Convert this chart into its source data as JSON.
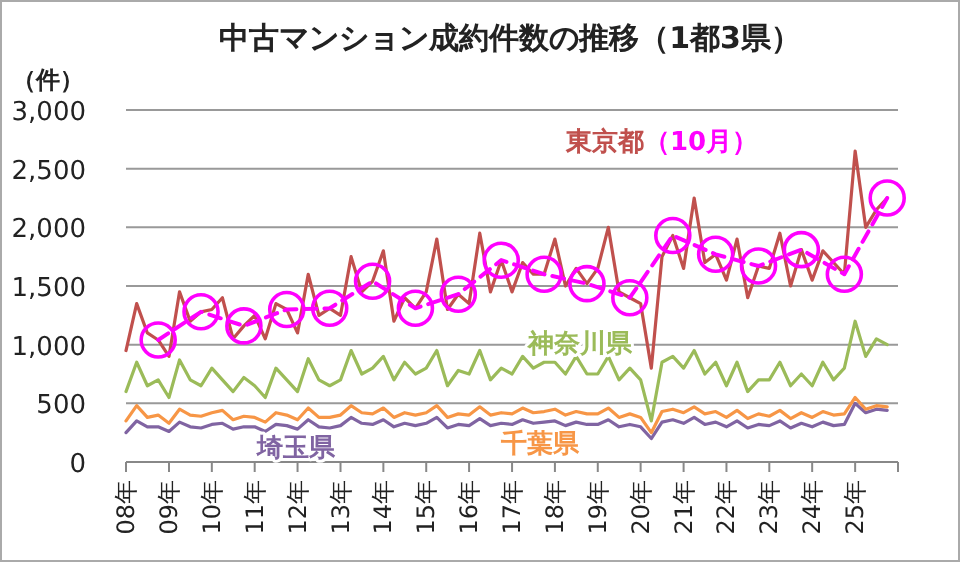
{
  "chart_data": {
    "type": "line",
    "title": "中古マンション成約件数の推移（1都3県）",
    "ylabel": "（件）",
    "x": [
      "2008-01",
      "2008-04",
      "2008-07",
      "2008-10",
      "2009-01",
      "2009-04",
      "2009-07",
      "2009-10",
      "2010-01",
      "2010-04",
      "2010-07",
      "2010-10",
      "2011-01",
      "2011-04",
      "2011-07",
      "2011-10",
      "2012-01",
      "2012-04",
      "2012-07",
      "2012-10",
      "2013-01",
      "2013-04",
      "2013-07",
      "2013-10",
      "2014-01",
      "2014-04",
      "2014-07",
      "2014-10",
      "2015-01",
      "2015-04",
      "2015-07",
      "2015-10",
      "2016-01",
      "2016-04",
      "2016-07",
      "2016-10",
      "2017-01",
      "2017-04",
      "2017-07",
      "2017-10",
      "2018-01",
      "2018-04",
      "2018-07",
      "2018-10",
      "2019-01",
      "2019-04",
      "2019-07",
      "2019-10",
      "2020-01",
      "2020-04",
      "2020-07",
      "2020-10",
      "2021-01",
      "2021-04",
      "2021-07",
      "2021-10",
      "2022-01",
      "2022-04",
      "2022-07",
      "2022-10",
      "2023-01",
      "2023-04",
      "2023-07",
      "2023-10",
      "2024-01",
      "2024-04",
      "2024-07",
      "2024-10",
      "2025-01",
      "2025-04",
      "2025-07",
      "2025-10"
    ],
    "xlim": [
      "2008-01",
      "2026-01"
    ],
    "xticks": [
      {
        "value": "2008-01",
        "label": "08年"
      },
      {
        "value": "2009-01",
        "label": "09年"
      },
      {
        "value": "2010-01",
        "label": "10年"
      },
      {
        "value": "2011-01",
        "label": "11年"
      },
      {
        "value": "2012-01",
        "label": "12年"
      },
      {
        "value": "2013-01",
        "label": "13年"
      },
      {
        "value": "2014-01",
        "label": "14年"
      },
      {
        "value": "2015-01",
        "label": "15年"
      },
      {
        "value": "2016-01",
        "label": "16年"
      },
      {
        "value": "2017-01",
        "label": "17年"
      },
      {
        "value": "2018-01",
        "label": "18年"
      },
      {
        "value": "2019-01",
        "label": "19年"
      },
      {
        "value": "2020-01",
        "label": "20年"
      },
      {
        "value": "2021-01",
        "label": "21年"
      },
      {
        "value": "2022-01",
        "label": "22年"
      },
      {
        "value": "2023-01",
        "label": "23年"
      },
      {
        "value": "2024-01",
        "label": "24年"
      },
      {
        "value": "2025-01",
        "label": "25年"
      },
      {
        "value": "2026-01",
        "label": null
      }
    ],
    "ylim": [
      0,
      3000
    ],
    "yticks": [
      0,
      500,
      {
        "value": 1000,
        "label": "1,000"
      },
      {
        "value": 1500,
        "label": "1,500"
      },
      {
        "value": 2000,
        "label": "2,000"
      },
      {
        "value": 2500,
        "label": "2,500"
      },
      {
        "value": 3000,
        "label": "3,000"
      }
    ],
    "grid": "y",
    "marker": "none",
    "line_style": "solid",
    "series": [
      {
        "name": "東京都",
        "color": "#c0504d",
        "values": [
          950,
          1350,
          1100,
          1040,
          900,
          1450,
          1200,
          1280,
          1300,
          1400,
          1050,
          1160,
          1250,
          1050,
          1350,
          1300,
          1100,
          1600,
          1250,
          1310,
          1250,
          1750,
          1450,
          1540,
          1800,
          1200,
          1400,
          1310,
          1450,
          1900,
          1300,
          1430,
          1350,
          1950,
          1450,
          1720,
          1450,
          1700,
          1600,
          1600,
          1900,
          1500,
          1650,
          1520,
          1650,
          2000,
          1450,
          1400,
          1350,
          800,
          1750,
          1930,
          1650,
          2250,
          1700,
          1770,
          1550,
          1900,
          1400,
          1670,
          1650,
          1950,
          1500,
          1810,
          1550,
          1800,
          1700,
          1600,
          2650,
          2000,
          2150,
          2250
        ]
      },
      {
        "name": "（10月）",
        "color": "#ff00ff",
        "marker": "circle",
        "line_style": "dashed",
        "x": [
          "2008-10",
          "2009-10",
          "2010-10",
          "2011-10",
          "2012-10",
          "2013-10",
          "2014-10",
          "2015-10",
          "2016-10",
          "2017-10",
          "2018-10",
          "2019-10",
          "2020-10",
          "2021-10",
          "2022-10",
          "2023-10",
          "2024-10",
          "2025-10"
        ],
        "values": [
          1040,
          1280,
          1160,
          1300,
          1310,
          1540,
          1310,
          1430,
          1720,
          1600,
          1520,
          1400,
          1930,
          1770,
          1670,
          1810,
          1600,
          2250
        ]
      },
      {
        "name": "神奈川県",
        "color": "#9bbb59",
        "values": [
          600,
          850,
          650,
          700,
          550,
          870,
          700,
          650,
          800,
          700,
          600,
          720,
          650,
          550,
          800,
          700,
          600,
          880,
          700,
          650,
          700,
          950,
          750,
          800,
          900,
          700,
          850,
          750,
          800,
          950,
          650,
          780,
          750,
          950,
          700,
          800,
          750,
          900,
          800,
          850,
          850,
          750,
          900,
          750,
          750,
          900,
          700,
          800,
          700,
          350,
          850,
          900,
          800,
          950,
          750,
          850,
          650,
          850,
          600,
          700,
          700,
          850,
          650,
          750,
          650,
          850,
          700,
          800,
          1200,
          900,
          1050,
          1000
        ]
      },
      {
        "name": "埼玉県",
        "color": "#8064a2",
        "values": [
          250,
          350,
          300,
          300,
          260,
          340,
          300,
          290,
          320,
          330,
          280,
          300,
          300,
          260,
          320,
          310,
          280,
          360,
          300,
          290,
          310,
          380,
          330,
          320,
          360,
          300,
          330,
          310,
          330,
          380,
          290,
          320,
          310,
          370,
          310,
          330,
          320,
          360,
          330,
          340,
          350,
          310,
          340,
          320,
          320,
          360,
          300,
          320,
          300,
          200,
          340,
          360,
          330,
          380,
          320,
          340,
          300,
          350,
          290,
          320,
          310,
          350,
          290,
          330,
          300,
          340,
          310,
          320,
          500,
          420,
          450,
          440
        ]
      },
      {
        "name": "千葉県",
        "color": "#f79646",
        "values": [
          350,
          480,
          380,
          400,
          330,
          450,
          400,
          390,
          420,
          440,
          360,
          390,
          380,
          340,
          420,
          400,
          360,
          460,
          380,
          380,
          400,
          480,
          420,
          410,
          460,
          380,
          420,
          400,
          420,
          480,
          380,
          410,
          400,
          470,
          400,
          420,
          410,
          460,
          420,
          430,
          450,
          400,
          430,
          410,
          410,
          460,
          380,
          410,
          380,
          250,
          430,
          450,
          420,
          470,
          410,
          430,
          380,
          440,
          370,
          410,
          390,
          440,
          370,
          420,
          380,
          430,
          400,
          410,
          550,
          450,
          480,
          470
        ]
      }
    ]
  }
}
